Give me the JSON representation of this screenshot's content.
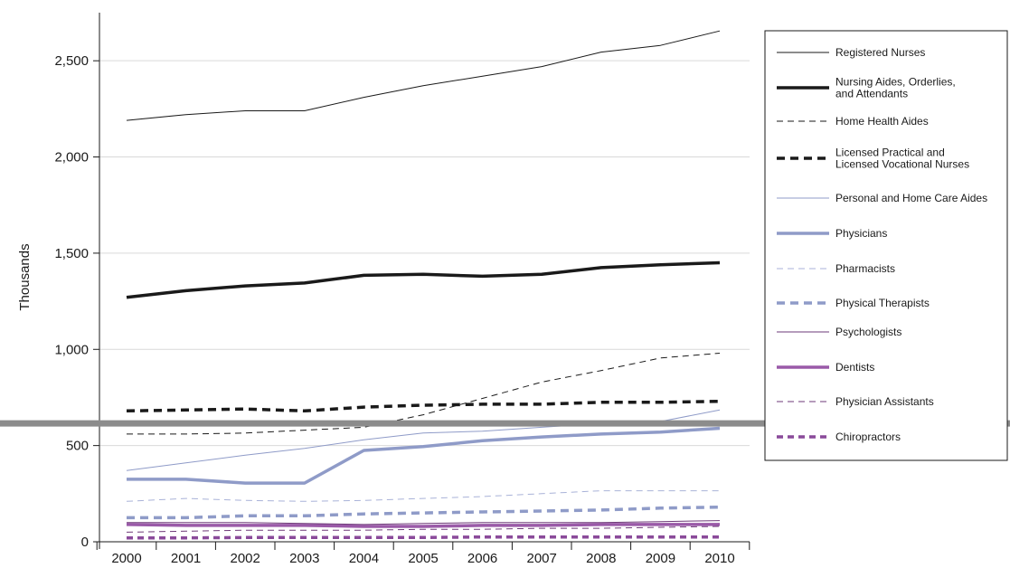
{
  "chart_data": {
    "type": "line",
    "ylabel": "Thousands",
    "xlabel": "",
    "ylim": [
      0,
      2750
    ],
    "yticks": [
      0,
      500,
      1000,
      1500,
      2000,
      2500
    ],
    "ytick_labels": [
      "0",
      "500",
      "1,000",
      "1,500",
      "2,000",
      "2,500"
    ],
    "x": [
      "2000",
      "2001",
      "2002",
      "2003",
      "2004",
      "2005",
      "2006",
      "2007",
      "2008",
      "2009",
      "2010"
    ],
    "grid": "horizontal",
    "legend_position": "right",
    "reference_line": {
      "value": 615,
      "color": "#8c8c8c"
    },
    "series": [
      {
        "name": "Registered Nurses",
        "color": "#1a1a1a",
        "width": 1,
        "dash": "",
        "values": [
          2190,
          2220,
          2240,
          2240,
          2310,
          2370,
          2420,
          2470,
          2545,
          2580,
          2655
        ]
      },
      {
        "name": "Nursing Aides, Orderlies,\nand Attendants",
        "color": "#1a1a1a",
        "width": 3.5,
        "dash": "",
        "values": [
          1270,
          1305,
          1330,
          1345,
          1385,
          1390,
          1380,
          1390,
          1425,
          1440,
          1450
        ]
      },
      {
        "name": "Home Health Aides",
        "color": "#1a1a1a",
        "width": 1,
        "dash": "7,5",
        "values": [
          560,
          560,
          565,
          580,
          595,
          660,
          745,
          830,
          890,
          955,
          980
        ]
      },
      {
        "name": "Licensed Practical and\nLicensed Vocational Nurses",
        "color": "#1a1a1a",
        "width": 3.5,
        "dash": "9,6",
        "values": [
          680,
          685,
          690,
          680,
          700,
          710,
          715,
          715,
          725,
          725,
          730
        ]
      },
      {
        "name": "Personal and Home Care Aides",
        "color": "#8f9bc8",
        "width": 1,
        "dash": "",
        "values": [
          370,
          410,
          450,
          485,
          530,
          565,
          575,
          595,
          615,
          625,
          685
        ]
      },
      {
        "name": "Physicians",
        "color": "#8f9bc8",
        "width": 3.5,
        "dash": "",
        "values": [
          325,
          325,
          305,
          305,
          475,
          495,
          525,
          545,
          560,
          570,
          590
        ]
      },
      {
        "name": "Pharmacists",
        "color": "#a9b2d8",
        "width": 1,
        "dash": "7,5",
        "values": [
          210,
          225,
          215,
          210,
          215,
          225,
          235,
          250,
          265,
          265,
          265
        ]
      },
      {
        "name": "Physical Therapists",
        "color": "#8f9bc8",
        "width": 3.5,
        "dash": "9,6",
        "values": [
          125,
          125,
          135,
          135,
          145,
          150,
          155,
          160,
          165,
          175,
          180
        ]
      },
      {
        "name": "Psychologists",
        "color": "#6e3a78",
        "width": 1,
        "dash": "",
        "values": [
          100,
          100,
          100,
          95,
          90,
          95,
          100,
          100,
          100,
          105,
          110
        ]
      },
      {
        "name": "Dentists",
        "color": "#9a5aa8",
        "width": 3.5,
        "dash": "",
        "values": [
          90,
          85,
          85,
          85,
          80,
          80,
          85,
          85,
          90,
          90,
          90
        ]
      },
      {
        "name": "Physician Assistants",
        "color": "#6e3a78",
        "width": 1,
        "dash": "7,5",
        "values": [
          50,
          55,
          60,
          60,
          60,
          65,
          65,
          70,
          70,
          75,
          80
        ]
      },
      {
        "name": "Chiropractors",
        "color": "#8a4a9a",
        "width": 3.5,
        "dash": "7,5",
        "values": [
          20,
          20,
          22,
          22,
          22,
          22,
          25,
          25,
          25,
          25,
          25
        ]
      }
    ]
  }
}
